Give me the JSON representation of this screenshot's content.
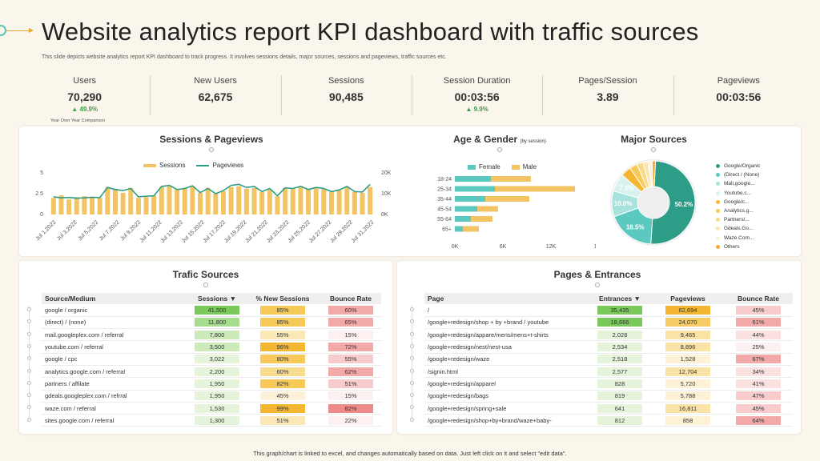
{
  "header": {
    "title": "Website analytics report KPI dashboard with traffic sources",
    "subtitle": "This slide depicts website analytics report KPI dashboard to track progress. It involves sessions details, major sources, sessions and pageviews, traffic sources etc."
  },
  "kpis": [
    {
      "label": "Users",
      "value": "70,290",
      "change": "▲ 49.9%"
    },
    {
      "label": "New Users",
      "value": "62,675",
      "change": ""
    },
    {
      "label": "Sessions",
      "value": "90,485",
      "change": ""
    },
    {
      "label": "Session Duration",
      "value": "00:03:56",
      "change": "▲ 9.9%"
    },
    {
      "label": "Pages/Session",
      "value": "3.89",
      "change": ""
    },
    {
      "label": "Pageviews",
      "value": "00:03:56",
      "change": ""
    }
  ],
  "kpi_note": "Year Over Year Comparison",
  "colors": {
    "gold": "#f2c463",
    "teal": "#2e9d87",
    "cyan": "#5cc9c0",
    "green": "#3a9b4a",
    "red": "#f2a0a0",
    "orange": "#f5b731"
  },
  "sessions_chart": {
    "title": "Sessions & Pageviews",
    "legend_sessions": "Sessions",
    "legend_pageviews": "Pageviews",
    "y_left_ticks": [
      "5",
      "2.5",
      "0"
    ],
    "y_right_ticks": [
      "20K",
      "10K",
      "0K"
    ],
    "x_labels": [
      "Jul 1,2022",
      "Jul 3,2022",
      "Jul 5,2022",
      "Jul 7,2022",
      "Jul 9,2022",
      "Jul 11,2022",
      "Jul 13,2022",
      "Jul 15,2022",
      "Jul 17,2022",
      "Jul 19,2022",
      "Jul 21,2022",
      "Jul 23,2022",
      "Jul 25,2022",
      "Jul 27,2022",
      "Jul 29,2022",
      "Jul 31,2022"
    ]
  },
  "chart_data": [
    {
      "type": "bar",
      "title": "Sessions & Pageviews",
      "ylim": [
        0,
        5
      ],
      "y2lim": [
        0,
        20000
      ],
      "series": [
        {
          "name": "Sessions",
          "values": [
            2.0,
            2.3,
            1.8,
            2.1,
            2.2,
            2.1,
            2.0,
            3.3,
            3.1,
            2.6,
            3.2,
            2.0,
            2.1,
            2.3,
            3.3,
            3.5,
            3.0,
            3.2,
            3.4,
            2.6,
            3.2,
            2.5,
            2.8,
            3.3,
            3.4,
            3.1,
            3.2,
            2.7,
            3.0,
            2.2,
            3.2,
            3.1,
            3.4,
            3.1,
            3.3,
            3.1,
            2.7,
            2.9,
            3.3,
            2.7,
            2.6,
            3.3
          ]
        },
        {
          "name": "Pageviews",
          "values": [
            8500,
            8000,
            8200,
            7800,
            8000,
            8300,
            8100,
            13000,
            12000,
            11500,
            12500,
            8500,
            8800,
            9000,
            13500,
            14000,
            12000,
            12500,
            13800,
            10500,
            12500,
            10000,
            11500,
            14000,
            14500,
            13000,
            13500,
            11000,
            12500,
            9000,
            12800,
            12500,
            13500,
            12000,
            13000,
            12500,
            11000,
            11800,
            13500,
            11000,
            10800,
            14500
          ]
        }
      ]
    },
    {
      "type": "bar",
      "title": "Age & Gender",
      "subtitle": "(by session)",
      "categories": [
        "18-24",
        "25-34",
        "35-44",
        "45-54",
        "55-64",
        "65+"
      ],
      "xlim": [
        0,
        18000
      ],
      "x_ticks": [
        "0K",
        "6K",
        "12K",
        "18K"
      ],
      "series": [
        {
          "name": "Female",
          "values": [
            4500,
            5000,
            3800,
            2800,
            2000,
            1000
          ]
        },
        {
          "name": "Male",
          "values": [
            5000,
            10000,
            5500,
            2600,
            2700,
            2000
          ]
        }
      ]
    },
    {
      "type": "pie",
      "title": "Major Sources",
      "categories": [
        "Google/Organic",
        "(Direct / (None)",
        "Mall,google...",
        "Youtube.c...",
        "Google/c...",
        "Analytics.g...",
        "Partners/...",
        "Gdeals.Go...",
        "Waze.Com...",
        "Others"
      ],
      "values": [
        50.2,
        18.5,
        10.0,
        7.0,
        4.0,
        3.0,
        2.5,
        2.0,
        1.5,
        1.3
      ],
      "labels": [
        "50.2%",
        "18.5%",
        "10.0%",
        "7.0%"
      ]
    }
  ],
  "age_chart": {
    "title": "Age & Gender",
    "subtitle": "(by session)",
    "legend_female": "Female",
    "legend_male": "Male",
    "rows": [
      "18-24",
      "25-34",
      "35-44",
      "45-54",
      "55-64",
      "65+"
    ],
    "x_ticks": [
      "0K",
      "6K",
      "12K",
      "18K"
    ]
  },
  "major_sources": {
    "title": "Major Sources",
    "legend": [
      "Google/Organic",
      "(Direct / (None)",
      "Mall,google...",
      "Youtube.c...",
      "Google/c...",
      "Analytics.g...",
      "Partners/...",
      "Gdeals.Go...",
      "Waze.Com...",
      "Others"
    ],
    "legend_colors": [
      "#2e9d87",
      "#5cc9c0",
      "#a8e2dd",
      "#d9f2ef",
      "#f5b731",
      "#f7c958",
      "#f9d98a",
      "#fbe6b3",
      "#fdf1d6",
      "#f2a93b"
    ]
  },
  "traffic": {
    "title": "Trafic Sources",
    "headers": [
      "Source/Medium",
      "Sessions",
      "% New Sessions",
      "Bounce Rate"
    ],
    "rows": [
      {
        "source": "google / organic",
        "sessions": "41,500",
        "new": "85%",
        "bounce": "60%"
      },
      {
        "source": "(direct) / (none)",
        "sessions": "11,800",
        "new": "85%",
        "bounce": "65%"
      },
      {
        "source": "mail.googleplex.com  / referral",
        "sessions": "7,800",
        "new": "55%",
        "bounce": "15%"
      },
      {
        "source": "youtube.com / referral",
        "sessions": "3,500",
        "new": "96%",
        "bounce": "72%"
      },
      {
        "source": "google / cpc",
        "sessions": "3,022",
        "new": "80%",
        "bounce": "55%"
      },
      {
        "source": "analytics.google.com / referral",
        "sessions": "2,200",
        "new": "60%",
        "bounce": "62%"
      },
      {
        "source": "partners / affilate",
        "sessions": "1,950",
        "new": "82%",
        "bounce": "51%"
      },
      {
        "source": "gdeals.googleplex.com / refrral",
        "sessions": "1,950",
        "new": "45%",
        "bounce": "15%"
      },
      {
        "source": "waze.com / referral",
        "sessions": "1,530",
        "new": "99%",
        "bounce": "82%"
      },
      {
        "source": "sites.google.com / referral",
        "sessions": "1,300",
        "new": "51%",
        "bounce": "22%"
      }
    ]
  },
  "pages": {
    "title": "Pages & Entrances",
    "headers": [
      "Page",
      "Entrances",
      "Pageviews",
      "Bounce Rate"
    ],
    "rows": [
      {
        "page": "/",
        "entrances": "35,435",
        "views": "62,694",
        "bounce": "45%"
      },
      {
        "page": "/google+redesign/shop + by +brand / youtube",
        "entrances": "18,666",
        "views": "24,070",
        "bounce": "61%"
      },
      {
        "page": "/google+redesign/appare/mens/mens+t-shirts",
        "entrances": "2,028",
        "views": "9,465",
        "bounce": "44%"
      },
      {
        "page": "/google+redesign/nest/nest-usa",
        "entrances": "2,534",
        "views": "8,896",
        "bounce": "25%"
      },
      {
        "page": "/google+redesign/waze",
        "entrances": "2,518",
        "views": "1,528",
        "bounce": "67%"
      },
      {
        "page": "/signin.html",
        "entrances": "2,577",
        "views": "12,704",
        "bounce": "34%"
      },
      {
        "page": "/google+redesign/apparel",
        "entrances": "828",
        "views": "5,720",
        "bounce": "41%"
      },
      {
        "page": "/google+redesign/bags",
        "entrances": "819",
        "views": "5,788",
        "bounce": "47%"
      },
      {
        "page": "/google+redesign/spring+sale",
        "entrances": "641",
        "views": "16,811",
        "bounce": "45%"
      },
      {
        "page": "/google+redesign/shop+by+brand/waze+baby-",
        "entrances": "812",
        "views": "858",
        "bounce": "64%"
      }
    ]
  },
  "footer": "This graph/chart is linked to excel, and changes automatically based on data. Just left click on it and select \"edit data\"."
}
